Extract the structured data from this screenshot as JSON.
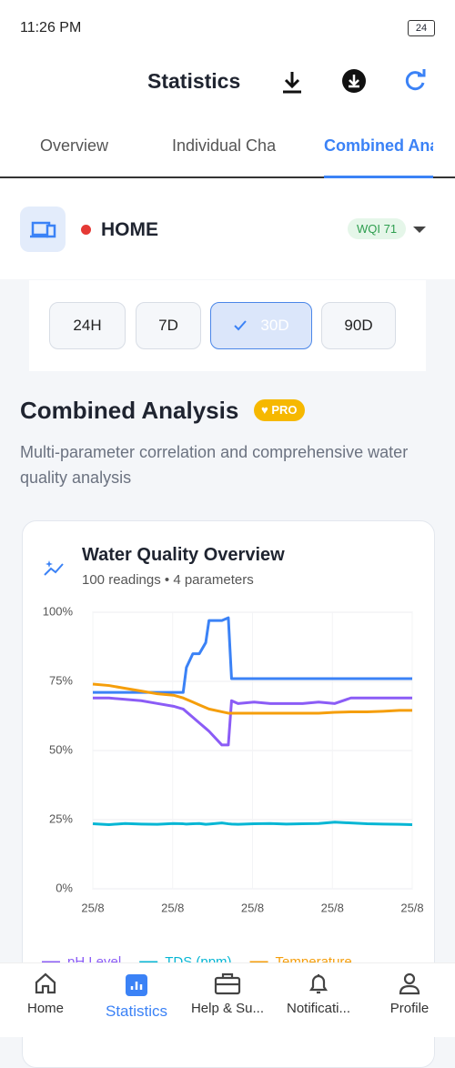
{
  "status_bar": {
    "time": "11:26 PM",
    "battery": "24"
  },
  "header": {
    "title": "Statistics"
  },
  "tabs": [
    "Overview",
    "Individual Cha",
    "Combined Ana"
  ],
  "device": {
    "name": "HOME",
    "wqi": "WQI 71"
  },
  "ranges": [
    "24H",
    "7D",
    "30D",
    "90D"
  ],
  "section": {
    "title": "Combined Analysis",
    "badge": "PRO",
    "description": "Multi-parameter correlation and comprehensive water quality analysis"
  },
  "card": {
    "title": "Water Quality Overview",
    "subtitle": "100 readings • 4 parameters"
  },
  "chart_data": {
    "type": "line",
    "x": [
      0,
      5,
      10,
      15,
      20,
      25,
      28,
      29,
      31,
      33,
      35,
      36,
      40,
      42,
      43,
      45,
      50,
      55,
      60,
      65,
      70,
      75,
      80,
      85,
      90,
      95,
      99
    ],
    "xlim": [
      0,
      99
    ],
    "xticks": [
      {
        "value": 0,
        "label": "25/8"
      },
      {
        "value": 24.75,
        "label": "25/8"
      },
      {
        "value": 49.5,
        "label": "25/8"
      },
      {
        "value": 74.25,
        "label": "25/8"
      },
      {
        "value": 99,
        "label": "25/8"
      }
    ],
    "ylim": [
      0,
      100
    ],
    "yticks": [
      {
        "value": 0,
        "label": "0%"
      },
      {
        "value": 25,
        "label": "25%"
      },
      {
        "value": 50,
        "label": "50%"
      },
      {
        "value": 75,
        "label": "75%"
      },
      {
        "value": 100,
        "label": "100%"
      }
    ],
    "grid": true,
    "series": [
      {
        "color": "#3b82f6",
        "values": [
          71,
          71,
          71,
          71,
          71,
          71,
          71,
          80,
          85,
          85,
          89,
          97,
          97,
          98,
          76,
          76,
          76,
          76,
          76,
          76,
          76,
          76,
          76,
          76,
          76,
          76,
          76
        ]
      },
      {
        "name": "pH Level",
        "color": "#8b5cf6",
        "values": [
          69,
          69,
          68.5,
          68,
          67,
          66,
          65,
          64,
          62,
          60,
          58,
          57,
          52,
          52,
          68,
          67,
          67.5,
          67,
          67,
          67,
          67.5,
          67,
          69,
          69,
          69,
          69,
          69
        ]
      },
      {
        "name": "TDS (ppm)",
        "color": "#06b6d4",
        "values": [
          23.5,
          23.2,
          23.6,
          23.4,
          23.3,
          23.6,
          23.5,
          23.4,
          23.5,
          23.6,
          23.3,
          23.4,
          23.8,
          23.5,
          23.4,
          23.3,
          23.5,
          23.6,
          23.4,
          23.5,
          23.6,
          24.1,
          23.8,
          23.5,
          23.4,
          23.3,
          23.2
        ]
      },
      {
        "name": "Temperature",
        "color": "#f59e0b",
        "values": [
          74,
          73.5,
          72.5,
          71.5,
          70.5,
          70,
          69,
          68.5,
          67.5,
          66.5,
          65.5,
          65,
          64,
          63.5,
          63.5,
          63.5,
          63.5,
          63.5,
          63.5,
          63.5,
          63.5,
          63.8,
          64,
          64,
          64.2,
          64.5,
          64.5
        ]
      }
    ]
  },
  "nav": [
    "Home",
    "Statistics",
    "Help & Su...",
    "Notificati...",
    "Profile"
  ]
}
